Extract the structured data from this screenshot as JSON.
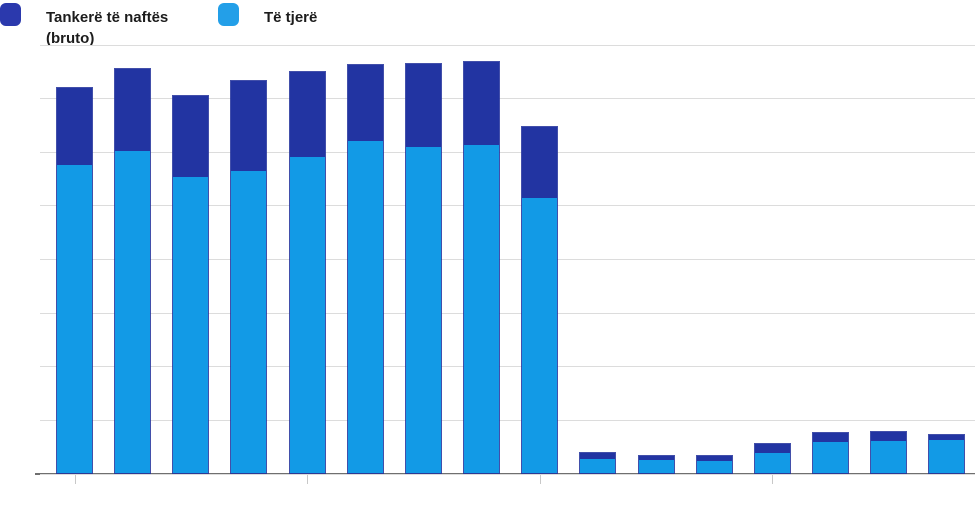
{
  "legend": {
    "items": [
      {
        "label": "Tankerë të naftës (bruto)",
        "color": "#2b39ad"
      },
      {
        "label": "Të tjerë",
        "color": "#239fe8"
      }
    ]
  },
  "chart_data": {
    "type": "bar",
    "stacked": true,
    "title": "",
    "xlabel": "",
    "ylabel": "",
    "categories": [
      "",
      "",
      "",
      "",
      "",
      "",
      "",
      "",
      "",
      "",
      "",
      "",
      "",
      "",
      "",
      ""
    ],
    "series": [
      {
        "name": "Të tjerë",
        "color": "#129ae6",
        "values": [
          5.78,
          6.03,
          5.55,
          5.67,
          5.92,
          6.22,
          6.11,
          6.15,
          5.15,
          0.28,
          0.27,
          0.26,
          0.4,
          0.6,
          0.63,
          0.65
        ]
      },
      {
        "name": "Tankerë të naftës (bruto)",
        "color": "#2234a2",
        "values": [
          1.44,
          1.54,
          1.52,
          1.67,
          1.59,
          1.42,
          1.55,
          1.56,
          1.34,
          0.13,
          0.08,
          0.09,
          0.18,
          0.18,
          0.18,
          0.09
        ]
      }
    ],
    "ylim": [
      0,
      8
    ],
    "y_gridline_interval": 1,
    "y_axis_labels_visible": false,
    "x_axis_labels_visible": false,
    "x_tick_indices": [
      0,
      4,
      8,
      12
    ],
    "grid": true,
    "legend_position": "top-left"
  }
}
